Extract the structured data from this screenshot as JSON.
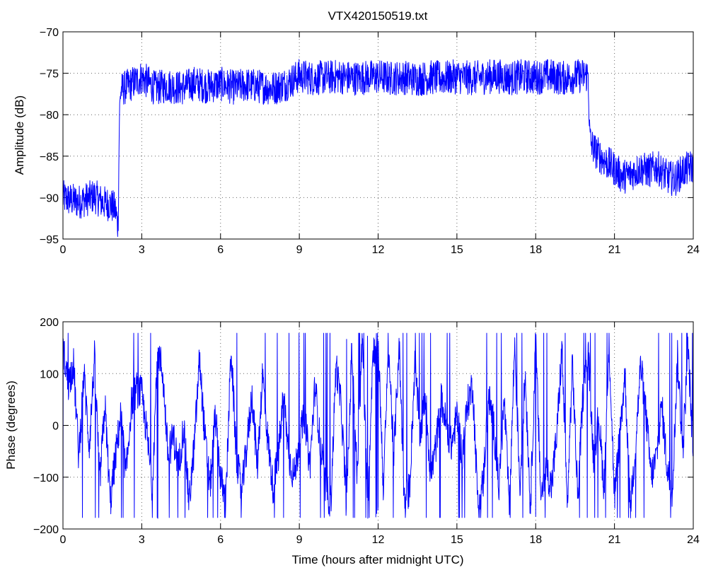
{
  "chart_data": [
    {
      "type": "line",
      "title": "VTX420150519.txt",
      "xlabel": "",
      "ylabel": "Amplitude (dB)",
      "xlim": [
        0,
        24
      ],
      "ylim": [
        -95,
        -70
      ],
      "xticks": [
        "0",
        "3",
        "6",
        "9",
        "12",
        "15",
        "18",
        "21",
        "24"
      ],
      "yticks": [
        "-70",
        "-75",
        "-80",
        "-85",
        "-90",
        "-95"
      ],
      "grid": true,
      "color": "#0000ff",
      "series": [
        {
          "x": [
            0,
            0.3,
            0.6,
            0.9,
            1.2,
            1.5,
            1.8,
            2.0,
            2.1,
            2.15,
            2.2,
            2.5,
            3.0,
            3.5,
            4.0,
            4.5,
            5.0,
            5.5,
            6.0,
            6.5,
            7.0,
            7.5,
            8.0,
            8.5,
            9.0,
            9.5,
            10.0,
            10.5,
            11.0,
            11.5,
            12.0,
            12.5,
            13.0,
            13.5,
            14.0,
            14.5,
            15.0,
            15.5,
            16.0,
            16.5,
            17.0,
            17.5,
            18.0,
            18.5,
            19.0,
            19.5,
            20.0,
            20.05,
            20.1,
            20.3,
            20.6,
            21.0,
            21.3,
            21.6,
            22.0,
            22.3,
            22.6,
            23.0,
            23.3,
            23.6,
            24.0
          ],
          "y": [
            -90,
            -90.3,
            -90.5,
            -90.2,
            -89.8,
            -90.6,
            -90.8,
            -91.5,
            -93.5,
            -80,
            -77,
            -76.5,
            -75.5,
            -76.8,
            -76.5,
            -76.8,
            -76.2,
            -76.6,
            -76.3,
            -76.7,
            -76.4,
            -76.6,
            -76.8,
            -76.3,
            -75.3,
            -75.6,
            -75.5,
            -75.4,
            -75.6,
            -75.5,
            -75.4,
            -75.6,
            -75.5,
            -75.7,
            -75.5,
            -75.6,
            -75.4,
            -75.6,
            -75.5,
            -75.3,
            -75.6,
            -75.4,
            -75.5,
            -75.3,
            -75.6,
            -75.4,
            -75.2,
            -82,
            -83.5,
            -84.5,
            -85.5,
            -86.5,
            -87.5,
            -87.2,
            -86.5,
            -86.8,
            -86.3,
            -87.5,
            -87.8,
            -86.8,
            -86.2
          ]
        }
      ]
    },
    {
      "type": "line",
      "title": "",
      "xlabel": "Time (hours after midnight UTC)",
      "ylabel": "Phase (degrees)",
      "xlim": [
        0,
        24
      ],
      "ylim": [
        -200,
        200
      ],
      "xticks": [
        "0",
        "3",
        "6",
        "9",
        "12",
        "15",
        "18",
        "21",
        "24"
      ],
      "yticks": [
        "200",
        "100",
        "0",
        "-100",
        "-200"
      ],
      "grid": true,
      "color": "#0000ff",
      "series": [
        {
          "x": [
            0,
            0.2,
            0.4,
            0.6,
            0.8,
            1.0,
            1.2,
            1.4,
            1.6,
            1.8,
            2.0,
            2.2,
            2.4,
            2.6,
            2.8,
            3.0,
            3.2,
            3.4,
            3.6,
            3.8,
            4.0,
            4.2,
            4.4,
            4.6,
            4.8,
            5.0,
            5.2,
            5.4,
            5.6,
            5.8,
            6.0,
            6.2,
            6.4,
            6.6,
            6.8,
            7.0,
            7.2,
            7.4,
            7.6,
            7.8,
            8.0,
            8.2,
            8.4,
            8.6,
            8.8,
            9.0,
            9.2,
            9.4,
            9.6,
            9.8,
            10.0,
            10.2,
            10.4,
            10.6,
            10.8,
            11.0,
            11.2,
            11.4,
            11.6,
            11.8,
            12.0,
            12.2,
            12.4,
            12.6,
            12.8,
            13.0,
            13.2,
            13.4,
            13.6,
            13.8,
            14.0,
            14.2,
            14.4,
            14.6,
            14.8,
            15.0,
            15.2,
            15.4,
            15.6,
            15.8,
            16.0,
            16.2,
            16.4,
            16.6,
            16.8,
            17.0,
            17.2,
            17.4,
            17.6,
            17.8,
            18.0,
            18.2,
            18.4,
            18.6,
            18.8,
            19.0,
            19.2,
            19.4,
            19.6,
            19.8,
            20.0,
            20.2,
            20.4,
            20.6,
            20.8,
            21.0,
            21.2,
            21.4,
            21.6,
            21.8,
            22.0,
            22.2,
            22.4,
            22.6,
            22.8,
            23.0,
            23.2,
            23.4,
            23.6,
            23.8,
            24.0
          ],
          "y": [
            150,
            80,
            120,
            -60,
            100,
            -40,
            130,
            -110,
            40,
            -150,
            -60,
            20,
            -100,
            40,
            70,
            60,
            -20,
            -120,
            150,
            100,
            -60,
            -20,
            -80,
            0,
            -150,
            -40,
            130,
            -20,
            -120,
            20,
            -100,
            -150,
            150,
            -60,
            -130,
            -40,
            60,
            -80,
            100,
            -30,
            -120,
            -60,
            60,
            -60,
            -100,
            -30,
            20,
            -80,
            80,
            -40,
            -120,
            -150,
            120,
            30,
            -160,
            150,
            -100,
            170,
            -160,
            140,
            170,
            -120,
            150,
            -60,
            160,
            -150,
            -120,
            120,
            -20,
            60,
            -100,
            -40,
            50,
            0,
            -40,
            20,
            -60,
            40,
            80,
            -150,
            -110,
            60,
            0,
            -120,
            50,
            -160,
            160,
            -120,
            100,
            -160,
            160,
            -140,
            -80,
            -120,
            -20,
            150,
            -160,
            120,
            -140,
            60,
            140,
            -60,
            20,
            -120,
            150,
            -140,
            -20,
            100,
            -160,
            -40,
            120,
            20,
            -100,
            -60,
            40,
            -80,
            -130,
            130,
            -50,
            150,
            -60
          ]
        }
      ]
    }
  ]
}
